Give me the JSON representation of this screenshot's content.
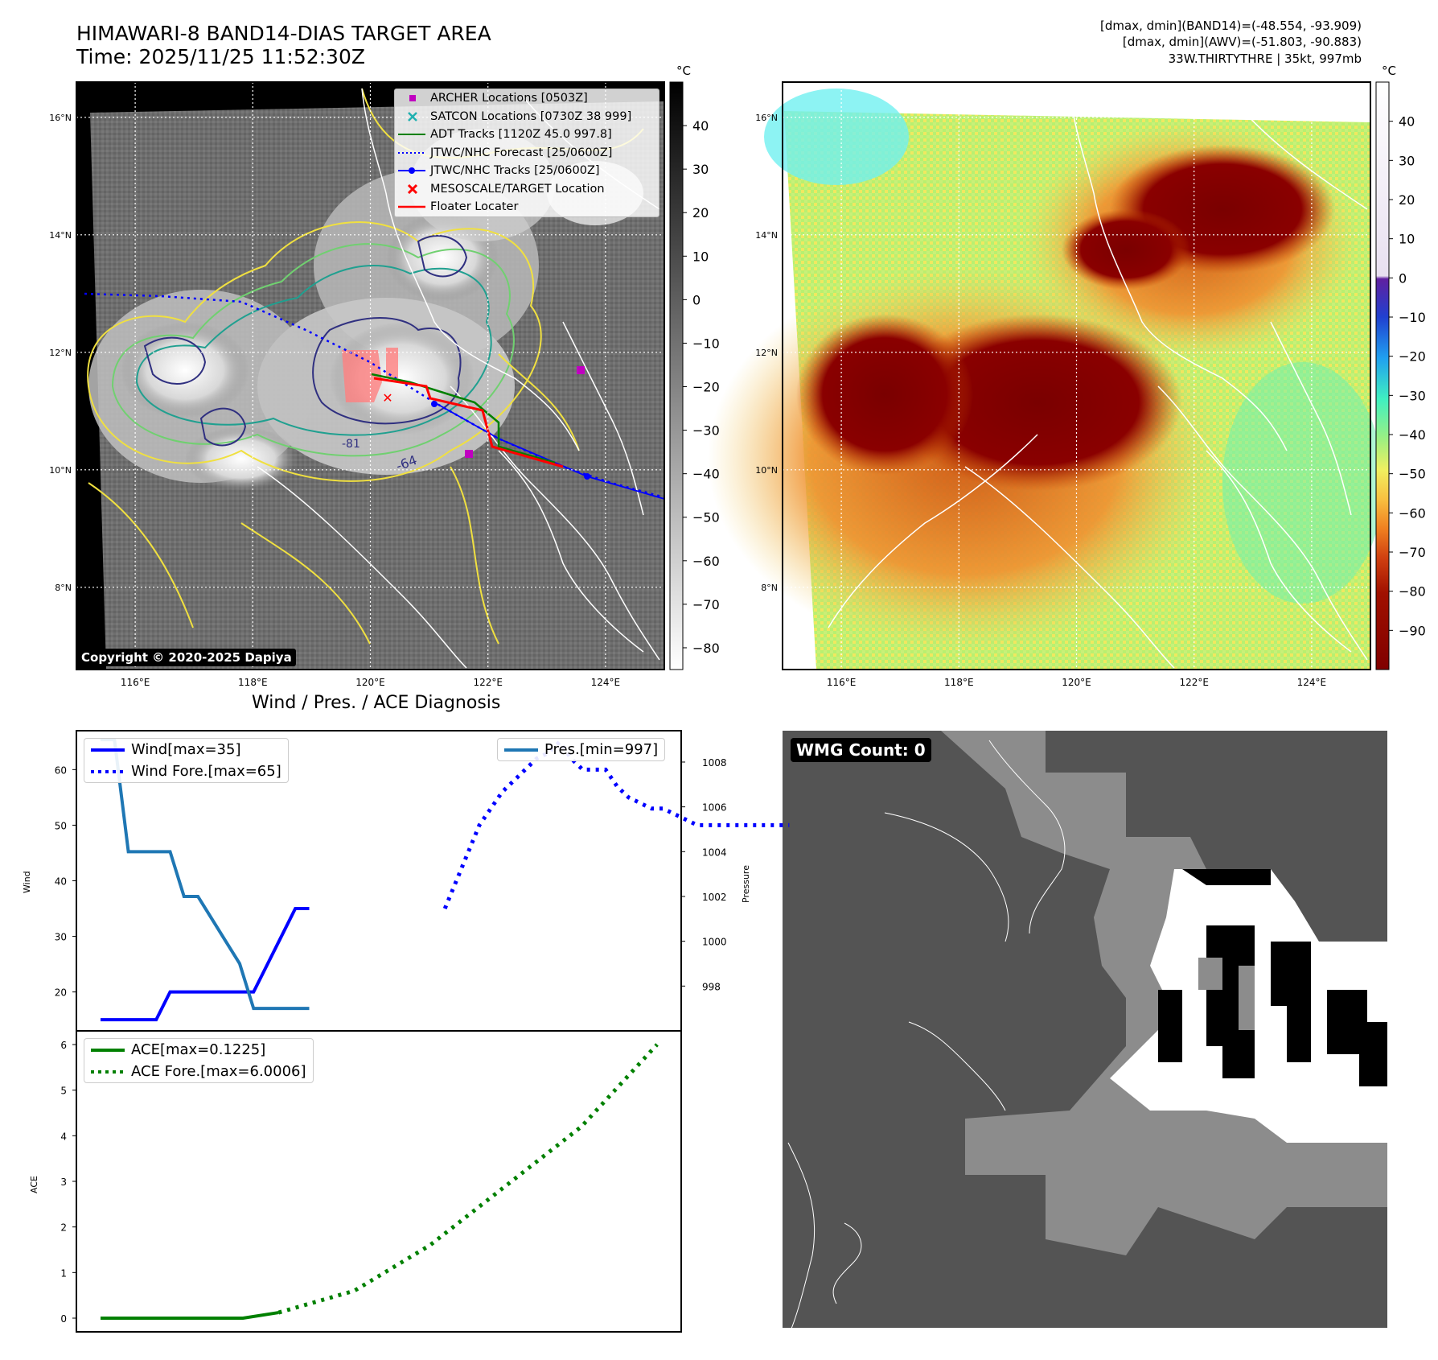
{
  "title": {
    "line1": "HIMAWARI-8 BAND14-DIAS TARGET AREA",
    "line2": "Time: 2025/11/25 11:52:30Z"
  },
  "info": {
    "line1": "[dmax, dmin](BAND14)=(-48.554, -93.909)",
    "line2": "[dmax, dmin](AWV)=(-51.803, -90.883)",
    "line3": "33W.THIRTYTHRE | 35kt, 997mb"
  },
  "copyright": "Copyright © 2020-2025 Dapiya",
  "wmg_label": "WMG Count: 0",
  "diag_title": "Wind / Pres. / ACE Diagnosis",
  "colors": {
    "wind": "#0000ff",
    "pres": "#1f77b4",
    "ace": "#008000",
    "archer": "#c000c0",
    "satcon": "#20b0b0",
    "adt": "#008000",
    "target": "#ff0000",
    "floater": "#ff0000"
  },
  "map_legend": [
    {
      "label": "ARCHER Locations [0503Z]",
      "icon": "magenta-square-marker"
    },
    {
      "label": "SATCON Locations [0730Z 38 999]",
      "icon": "cyan-x-marker"
    },
    {
      "label": "ADT Tracks [1120Z 45.0 997.8]",
      "icon": "green-line"
    },
    {
      "label": "JTWC/NHC Forecast [25/0600Z]",
      "icon": "blue-dotted-line"
    },
    {
      "label": "JTWC/NHC Tracks [25/0600Z]",
      "icon": "blue-dot-line"
    },
    {
      "label": "MESOSCALE/TARGET Location",
      "icon": "red-x-marker"
    },
    {
      "label": "Floater Locater",
      "icon": "red-line"
    }
  ],
  "map_axes": {
    "lat_labels": [
      "16°N",
      "14°N",
      "12°N",
      "10°N",
      "8°N"
    ],
    "lat_values": [
      16,
      14,
      12,
      10,
      8
    ],
    "lon_labels": [
      "116°E",
      "118°E",
      "120°E",
      "122°E",
      "124°E"
    ],
    "lon_values": [
      116,
      118,
      120,
      122,
      124
    ],
    "lon_range": [
      115,
      125
    ],
    "lat_range": [
      6.6,
      16.6
    ]
  },
  "colorbar_gray": {
    "unit": "°C",
    "ticks": [
      "40",
      "30",
      "20",
      "10",
      "0",
      "−10",
      "−20",
      "−30",
      "−40",
      "−50",
      "−60",
      "−70",
      "−80"
    ],
    "values": [
      40,
      30,
      20,
      10,
      0,
      -10,
      -20,
      -30,
      -40,
      -50,
      -60,
      -70,
      -80
    ],
    "range": [
      -85,
      50
    ]
  },
  "colorbar_color": {
    "unit": "°C",
    "ticks": [
      "40",
      "30",
      "20",
      "10",
      "0",
      "−10",
      "−20",
      "−30",
      "−40",
      "−50",
      "−60",
      "−70",
      "−80",
      "−90"
    ],
    "values": [
      40,
      30,
      20,
      10,
      0,
      -10,
      -20,
      -30,
      -40,
      -50,
      -60,
      -70,
      -80,
      -90
    ],
    "range": [
      -100,
      50
    ]
  },
  "contour_labels": [
    "-64",
    "-81"
  ],
  "chart_data": [
    {
      "type": "line",
      "title": "Wind / Pres. / ACE Diagnosis",
      "ylabel": "Wind",
      "ylabel2": "Pressure",
      "x_range": [
        0,
        30
      ],
      "ylim": [
        13,
        67
      ],
      "y2lim": [
        996.0,
        1009.4
      ],
      "yticks": [
        20,
        30,
        40,
        50,
        60
      ],
      "y2ticks": [
        998,
        1000,
        1002,
        1004,
        1006,
        1008
      ],
      "series": [
        {
          "name": "Wind[max=35]",
          "axis": "left",
          "style": "solid",
          "x": [
            0,
            2,
            4,
            6,
            8,
            10,
            12,
            14,
            16,
            18,
            20,
            22,
            24,
            26,
            28,
            30
          ],
          "values": [
            15,
            15,
            15,
            15,
            15,
            20,
            20,
            20,
            20,
            20,
            20,
            20,
            25,
            30,
            35,
            35
          ]
        },
        {
          "name": "Wind Fore.[max=65]",
          "axis": "left",
          "style": "dotted",
          "x": [
            0,
            1,
            2,
            3,
            4,
            5,
            6,
            7,
            8,
            9,
            10,
            11,
            12,
            13,
            14,
            15,
            16,
            17,
            18,
            19,
            20,
            21,
            22,
            23,
            24,
            25,
            26,
            27,
            28,
            29,
            30
          ],
          "values": [
            35,
            40,
            45,
            50,
            53,
            56,
            58,
            60,
            62,
            63,
            65,
            62,
            60,
            60,
            60,
            57,
            55,
            54,
            53,
            53,
            52,
            51,
            50,
            50,
            50,
            50,
            50,
            50,
            50,
            50,
            50
          ]
        },
        {
          "name": "Pres.[min=997]",
          "axis": "right",
          "style": "solid",
          "x": [
            0,
            2,
            4,
            6,
            8,
            10,
            12,
            14,
            16,
            18,
            20,
            22,
            24,
            26,
            28,
            30
          ],
          "values": [
            1009,
            1009,
            1004,
            1004,
            1004,
            1004,
            1002,
            1002,
            1001,
            1000,
            999,
            997,
            997,
            997,
            997,
            997
          ]
        }
      ],
      "legend_left": [
        "Wind[max=35]",
        "Wind Fore.[max=65]"
      ],
      "legend_right": [
        "Pres.[min=997]"
      ]
    },
    {
      "type": "line",
      "ylabel": "ACE",
      "x_range": [
        0,
        30
      ],
      "ylim": [
        -0.3,
        6.3
      ],
      "yticks": [
        0,
        1,
        2,
        3,
        4,
        5,
        6
      ],
      "series": [
        {
          "name": "ACE[max=0.1225]",
          "style": "solid",
          "x": [
            0,
            2,
            4,
            6,
            8,
            10
          ],
          "values": [
            0,
            0,
            0,
            0,
            0,
            0.1225
          ]
        },
        {
          "name": "ACE Fore.[max=6.0006]",
          "style": "dotted",
          "x": [
            0,
            2,
            4,
            6,
            8,
            10
          ],
          "values": [
            0.1225,
            0.6,
            1.6,
            2.9,
            4.2,
            6.0006
          ]
        }
      ]
    }
  ]
}
